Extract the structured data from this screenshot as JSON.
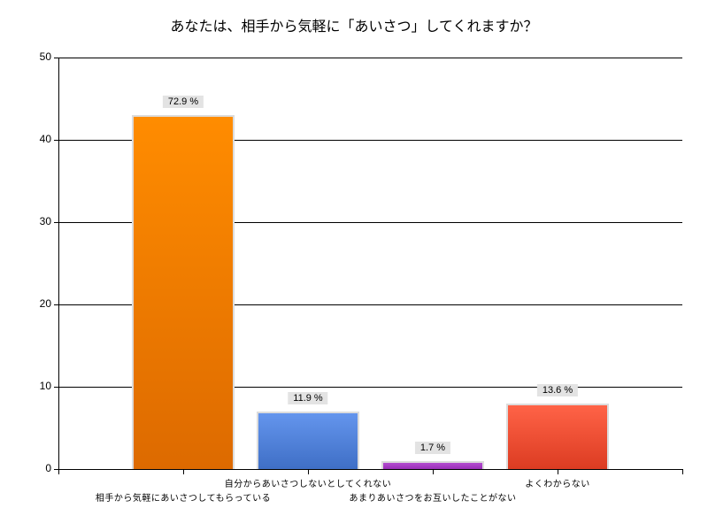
{
  "chart_data": {
    "type": "bar",
    "title": "あなたは、相手から気軽に「あいさつ」してくれますか？",
    "xlabel": "",
    "ylabel": "",
    "ylim": [
      0,
      50
    ],
    "yticks": [
      "0",
      "10",
      "20",
      "30",
      "40",
      "50"
    ],
    "grid": true,
    "legend": null,
    "categories": [
      "相手から気軽にあいさつしてもらっている",
      "自分からあいさつしないとしてくれない",
      "あまりあいさつをお互いしたことがない",
      "よくわからない"
    ],
    "values": [
      43,
      7,
      1,
      8
    ],
    "data_labels": [
      "72.9 %",
      "11.9 %",
      "1.7 %",
      "13.6 %"
    ],
    "colors": [
      {
        "top": "#ff8c00",
        "bottom": "#dd6a00"
      },
      {
        "top": "#6495ed",
        "bottom": "#3f6fc6"
      },
      {
        "top": "#b44ed0",
        "bottom": "#9a2fb8"
      },
      {
        "top": "#ff6347",
        "bottom": "#dc3c22"
      }
    ]
  }
}
